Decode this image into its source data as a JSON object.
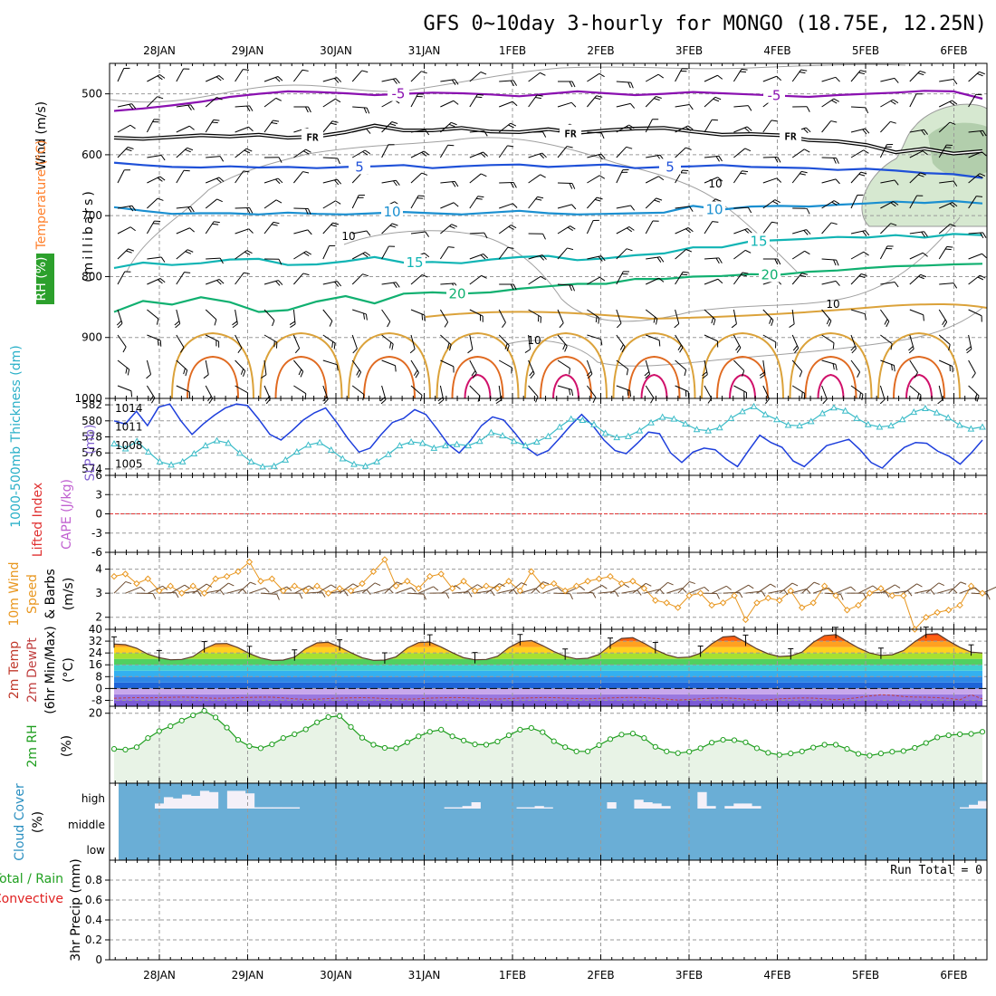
{
  "title": "GFS 0~10day 3-hourly for MONGO (18.75E, 12.25N)",
  "dates": [
    "28JAN",
    "29JAN",
    "30JAN",
    "31JAN",
    "1FEB",
    "2FEB",
    "3FEB",
    "4FEB",
    "5FEB",
    "6FEB"
  ],
  "colors": {
    "wind_label": "#000000",
    "temperature_label": "#ff7f2a",
    "rh_label": "#00c000",
    "thickness": "#1e3fdc",
    "slp": "#3cbcc8",
    "lifted_index": "#e03030",
    "cape": "#c060d0",
    "wind10_speed": "#e8961e",
    "temp2m": "#c0392b",
    "rh2m": "#1e9e1e",
    "cloud_fill": "#6aaed6",
    "cloud_gap": "#f4f0f8",
    "precip_total": "#20a020",
    "precip_conv": "#e02020"
  },
  "chart_data": [
    {
      "type": "line",
      "panel": "upper_air",
      "ylabel_parts": [
        "Wind (m/s)",
        "Temperature (°C)",
        "RH (%)"
      ],
      "ylabel_unit": "(millibars)",
      "ylim": [
        1000,
        450
      ],
      "yticks": [
        500,
        600,
        700,
        800,
        900,
        1000
      ],
      "isotherm_labels": [
        "-5",
        "FR",
        "5",
        "10",
        "15",
        "20"
      ],
      "rh_contour_labels": [
        "10"
      ],
      "series": [
        {
          "name": "-5",
          "levels": [
            528,
            524,
            519,
            513,
            505,
            500,
            496,
            497,
            499,
            502,
            500,
            498,
            499,
            501,
            504,
            500,
            496,
            499,
            502,
            500,
            497,
            499,
            501,
            503,
            505,
            502,
            500,
            498,
            495,
            496,
            508
          ]
        },
        {
          "name": "FR",
          "levels": [
            572,
            574,
            571,
            568,
            570,
            567,
            572,
            570,
            563,
            552,
            560,
            560,
            556,
            562,
            563,
            558,
            564,
            560,
            557,
            556,
            562,
            567,
            566,
            568,
            576,
            578,
            584,
            596,
            590,
            598,
            594
          ]
        },
        {
          "name": "5",
          "levels": [
            613,
            617,
            620,
            621,
            619,
            621,
            620,
            622,
            620,
            619,
            617,
            622,
            619,
            617,
            616,
            620,
            618,
            616,
            622,
            620,
            619,
            617,
            620,
            621,
            622,
            625,
            623,
            626,
            630,
            632,
            638
          ]
        },
        {
          "name": "10",
          "levels": [
            686,
            692,
            697,
            696,
            696,
            698,
            695,
            697,
            698,
            696,
            694,
            696,
            698,
            695,
            692,
            696,
            698,
            697,
            696,
            695,
            684,
            690,
            685,
            684,
            685,
            682,
            680,
            677,
            679,
            676,
            680
          ]
        },
        {
          "name": "15",
          "levels": [
            786,
            777,
            781,
            778,
            772,
            771,
            781,
            780,
            775,
            768,
            777,
            776,
            778,
            772,
            768,
            766,
            773,
            770,
            765,
            762,
            752,
            752,
            742,
            740,
            738,
            735,
            736,
            732,
            736,
            730,
            732
          ]
        },
        {
          "name": "20",
          "levels": [
            858,
            840,
            846,
            834,
            842,
            858,
            855,
            841,
            832,
            844,
            828,
            826,
            828,
            826,
            820,
            816,
            812,
            812,
            804,
            804,
            800,
            799,
            796,
            797,
            792,
            790,
            786,
            783,
            782,
            780,
            779
          ]
        }
      ]
    },
    {
      "type": "line",
      "panel": "thickness_slp",
      "ylabel": "1000-500mb Thickness (dm)",
      "ylabel2": "SLP (mb)",
      "yticks_left": [
        574,
        576,
        578,
        580,
        582
      ],
      "yticks_right": [
        1005,
        1008,
        1011,
        1014
      ],
      "series": [
        {
          "name": "thickness",
          "values": [
            580.0,
            579.6,
            581.2,
            579.4,
            581.7,
            582.1,
            580.0,
            578.3,
            579.6,
            580.7,
            581.6,
            582.1,
            581.9,
            580.2,
            578.3,
            577.6,
            578.8,
            580.1,
            581.0,
            581.6,
            579.8,
            577.8,
            576.1,
            576.6,
            578.3,
            579.8,
            580.3,
            581.4,
            580.8,
            579.0,
            577.1,
            576.0,
            577.5,
            579.4,
            580.5,
            580.1,
            578.5,
            576.7,
            575.7,
            576.3,
            577.8,
            579.4,
            580.8,
            579.4,
            577.6,
            576.3,
            575.9,
            577.2,
            578.6,
            578.4,
            576.0,
            574.8,
            576.1,
            576.6,
            576.4,
            575.2,
            574.3,
            576.3,
            578.2,
            577.3,
            576.7,
            575.0,
            574.3,
            575.6,
            576.9,
            577.3,
            577.7,
            576.4,
            574.8,
            574.1,
            575.5,
            576.7,
            577.3,
            577.2,
            576.2,
            575.6,
            574.6,
            576.0,
            577.6
          ]
        },
        {
          "name": "slp",
          "values": [
            1008.3,
            1007.5,
            1008.7,
            1007.0,
            1005.4,
            1004.9,
            1005.4,
            1006.7,
            1008.0,
            1008.8,
            1008.4,
            1006.8,
            1005.4,
            1004.6,
            1004.7,
            1005.7,
            1007.0,
            1008.1,
            1008.5,
            1007.3,
            1005.9,
            1005.0,
            1004.7,
            1005.4,
            1006.6,
            1008.0,
            1008.6,
            1008.4,
            1007.6,
            1008.0,
            1008.2,
            1008.0,
            1008.7,
            1010.1,
            1009.6,
            1008.7,
            1008.0,
            1008.6,
            1009.5,
            1011.0,
            1012.3,
            1012.1,
            1011.4,
            1010.0,
            1009.3,
            1009.5,
            1010.4,
            1011.7,
            1012.6,
            1012.3,
            1011.5,
            1010.6,
            1010.4,
            1010.9,
            1012.4,
            1013.5,
            1014.3,
            1013.0,
            1012.2,
            1011.3,
            1011.2,
            1011.9,
            1013.2,
            1014.1,
            1013.6,
            1012.4,
            1011.4,
            1011.0,
            1011.2,
            1012.2,
            1013.4,
            1014.0,
            1013.3,
            1012.5,
            1011.3,
            1010.7,
            1011.0
          ]
        }
      ]
    },
    {
      "type": "line",
      "panel": "lifted_cape",
      "ylabel": "Lifted Index",
      "ylabel2": "CAPE (J/kg)",
      "yticks": [
        6,
        3,
        0,
        -3,
        -6
      ],
      "ylim": [
        -6,
        6
      ],
      "series": [
        {
          "name": "Lifted Index",
          "values": [
            0
          ]
        }
      ]
    },
    {
      "type": "line",
      "panel": "wind10m",
      "ylabel": "10m Wind Speed & Barbs (m/s)",
      "ylabel_parts": [
        "10m Wind",
        "Speed",
        "& Barbs"
      ],
      "yunit": "(m/s)",
      "yticks": [
        2,
        3,
        4
      ],
      "ylim": [
        1.5,
        4.7
      ],
      "series": [
        {
          "name": "speed",
          "values": [
            3.7,
            3.8,
            3.4,
            3.6,
            3.1,
            3.3,
            3.0,
            3.3,
            3.0,
            3.6,
            3.7,
            3.9,
            4.3,
            3.5,
            3.6,
            3.1,
            3.3,
            3.1,
            3.3,
            3.0,
            3.2,
            3.1,
            3.4,
            3.9,
            4.4,
            3.3,
            3.5,
            3.2,
            3.7,
            3.8,
            3.2,
            3.5,
            3.1,
            3.3,
            3.2,
            3.5,
            3.1,
            3.9,
            3.3,
            3.4,
            3.1,
            3.3,
            3.5,
            3.6,
            3.7,
            3.4,
            3.5,
            3.2,
            2.7,
            2.6,
            2.4,
            2.9,
            3.0,
            2.5,
            2.6,
            2.9,
            1.9,
            2.6,
            2.8,
            2.7,
            3.1,
            2.4,
            2.6,
            3.3,
            2.9,
            2.3,
            2.5,
            3.0,
            3.2,
            2.9,
            2.9,
            1.5,
            2.0,
            2.2,
            2.3,
            2.5,
            3.3,
            3.0
          ]
        }
      ]
    },
    {
      "type": "area",
      "panel": "temp2m",
      "ylabel_parts": [
        "2m Temp",
        "2m DewPt",
        "(6hr Min/Max)"
      ],
      "yunit": "(°C)",
      "yticks": [
        40,
        32,
        24,
        16,
        8,
        0,
        -8
      ],
      "ylim": [
        -12,
        40
      ],
      "series": [
        {
          "name": "temp",
          "values": [
            30.0,
            29.6,
            27.2,
            23.2,
            20.8,
            19.4,
            19.6,
            21.6,
            26.8,
            30.2,
            30.4,
            27.6,
            23.6,
            20.6,
            19.0,
            19.2,
            21.2,
            27.0,
            30.8,
            31.2,
            28.0,
            24.2,
            20.8,
            19.0,
            19.2,
            21.4,
            27.4,
            31.0,
            31.4,
            28.0,
            24.2,
            20.8,
            19.4,
            19.6,
            21.8,
            27.6,
            31.6,
            32.4,
            29.0,
            25.0,
            21.8,
            20.0,
            20.4,
            23.0,
            29.2,
            33.8,
            34.4,
            30.6,
            26.2,
            22.8,
            20.8,
            21.2,
            23.8,
            30.2,
            34.8,
            35.4,
            31.2,
            26.8,
            23.4,
            21.6,
            22.0,
            24.6,
            31.2,
            35.8,
            36.4,
            31.8,
            27.4,
            24.0,
            22.4,
            22.8,
            25.6,
            31.6,
            36.6,
            37.0,
            32.2,
            27.8,
            24.6,
            24.0
          ]
        },
        {
          "name": "dewpoint",
          "values": [
            -6.6,
            -6.4,
            -6.2,
            -6.3,
            -6.1,
            -6.0,
            -5.8,
            -6.0,
            -6.4,
            -6.6,
            -6.5,
            -6.2,
            -6.0,
            -5.9,
            -5.9,
            -6.4,
            -7.0,
            -7.4,
            -7.2,
            -6.8,
            -6.5,
            -6.3,
            -6.2,
            -6.4,
            -6.8,
            -7.0,
            -7.2,
            -6.9,
            -6.5,
            -6.3,
            -6.1,
            -6.2,
            -6.6,
            -6.9,
            -7.1,
            -6.8,
            -6.5,
            -6.3,
            -6.1,
            -6.2,
            -6.5,
            -6.8,
            -7.0,
            -6.7,
            -6.4,
            -6.1,
            -6.0,
            -6.2,
            -6.7,
            -7.2,
            -7.8,
            -7.4,
            -6.9,
            -6.5,
            -6.3,
            -6.6,
            -7.3,
            -7.9,
            -7.6,
            -7.0,
            -6.6,
            -6.4,
            -6.5,
            -7.0,
            -7.6,
            -7.0,
            -6.1,
            -5.0,
            -4.2,
            -4.6,
            -5.4,
            -5.8,
            -5.9,
            -6.2,
            -6.7,
            -7.6,
            -4.2,
            -7.0
          ]
        }
      ]
    },
    {
      "type": "line",
      "panel": "rh2m",
      "ylabel": "2m RH",
      "yunit": "(%)",
      "yticks": [
        20
      ],
      "ylim": [
        0,
        22
      ],
      "series": [
        {
          "name": "rh",
          "values": [
            9.8,
            9.6,
            10.3,
            12.9,
            14.9,
            16.3,
            17.9,
            19.4,
            20.7,
            18.8,
            15.9,
            12.4,
            10.6,
            10.0,
            11.1,
            12.9,
            14.0,
            15.4,
            17.4,
            18.9,
            19.2,
            16.1,
            13.0,
            11.0,
            10.1,
            10.0,
            11.7,
            13.4,
            14.7,
            15.3,
            13.4,
            12.2,
            11.1,
            11.0,
            11.9,
            13.7,
            15.3,
            15.8,
            14.6,
            12.0,
            10.3,
            9.1,
            9.1,
            10.9,
            12.6,
            13.9,
            14.2,
            12.9,
            10.4,
            9.1,
            8.6,
            9.0,
            10.0,
            11.6,
            12.4,
            12.3,
            11.7,
            10.0,
            8.7,
            8.1,
            8.5,
            9.1,
            10.2,
            11.0,
            11.0,
            9.8,
            8.4,
            7.9,
            8.5,
            9.0,
            9.2,
            10.1,
            11.5,
            13.1,
            13.7,
            14.0,
            14.1,
            14.7
          ]
        }
      ]
    },
    {
      "type": "bar",
      "panel": "cloud_cover",
      "ylabel": "Cloud Cover",
      "yunit": "(%)",
      "layer_labels": [
        "high",
        "middle",
        "low"
      ],
      "series": [
        {
          "name": "high",
          "values": [
            0,
            0,
            0,
            0,
            20,
            45,
            40,
            55,
            50,
            70,
            65,
            0,
            70,
            70,
            60,
            5,
            5,
            5,
            5,
            5,
            0,
            0,
            0,
            0,
            0,
            0,
            0,
            0,
            0,
            0,
            0,
            0,
            0,
            0,
            0,
            0,
            5,
            5,
            10,
            25,
            0,
            0,
            0,
            0,
            5,
            5,
            10,
            5,
            0,
            0,
            0,
            0,
            0,
            0,
            25,
            0,
            0,
            35,
            25,
            20,
            10,
            0,
            0,
            0,
            65,
            10,
            0,
            10,
            20,
            20,
            10,
            0,
            0,
            0,
            0,
            0,
            0,
            0,
            0,
            0,
            0,
            0,
            0,
            0,
            0,
            0,
            0,
            0,
            0,
            0,
            0,
            0,
            0,
            5,
            15,
            30
          ]
        }
      ]
    },
    {
      "type": "bar",
      "panel": "precip",
      "ylabel": "3hr Precip (mm)",
      "legend_total": "Total / Rain",
      "legend_conv": "Convective",
      "annotation": "Run Total = 0",
      "yticks": [
        0,
        0.2,
        0.4,
        0.6,
        0.8
      ],
      "ylim": [
        0,
        1.0
      ],
      "series": [
        {
          "name": "Total / Rain",
          "values": [
            0
          ]
        }
      ]
    }
  ]
}
